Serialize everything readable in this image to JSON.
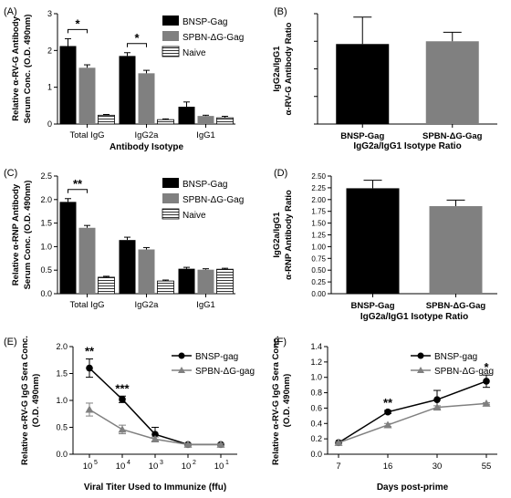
{
  "chart_data": [
    {
      "panel": "(A)",
      "type": "bar",
      "ylabel": [
        "Relative α-RV-G Antibody",
        "Serum Conc. (O.D. 490nm)"
      ],
      "xlabel": "Antibody Isotype",
      "categories": [
        "Total IgG",
        "IgG2a",
        "IgG1"
      ],
      "ylim": [
        0,
        3
      ],
      "yticks": [
        "0",
        "1",
        "2",
        "3"
      ],
      "series": [
        {
          "name": "BNSP-Gag",
          "values": [
            2.12,
            1.85,
            0.47
          ],
          "errors": [
            0.2,
            0.09,
            0.13
          ]
        },
        {
          "name": "SPBN-ΔG-Gag",
          "values": [
            1.53,
            1.38,
            0.22
          ],
          "errors": [
            0.08,
            0.08,
            0.02
          ]
        },
        {
          "name": "Naive",
          "values": [
            0.24,
            0.12,
            0.17
          ],
          "errors": [
            0.02,
            0.02,
            0.04
          ]
        }
      ],
      "annotations": [
        {
          "category": "Total IgG",
          "text": "*"
        },
        {
          "category": "IgG2a",
          "text": "*"
        }
      ],
      "legend": "top-right"
    },
    {
      "panel": "(B)",
      "type": "bar",
      "ylabel": [
        "IgG2a/IgG1",
        "α-RV-G Antibody Ratio"
      ],
      "xlabel": "IgG2a/IgG1 Isotype Ratio",
      "categories": [
        "BNSP-Gag",
        "SPBN-ΔG-Gag"
      ],
      "ylim": [
        0,
        8
      ],
      "values": [
        5.8,
        6.0
      ],
      "errors": [
        1.95,
        0.65
      ],
      "colors": [
        "#000000",
        "#808080"
      ]
    },
    {
      "panel": "(C)",
      "type": "bar",
      "ylabel": [
        "Relative α-RNP Antibody",
        "Serum Conc. (O.D. 490nm)"
      ],
      "categories": [
        "Total IgG",
        "IgG2a",
        "IgG1"
      ],
      "ylim": [
        0,
        2.5
      ],
      "yticks": [
        "0.0",
        "0.5",
        "1.0",
        "1.5",
        "2.0",
        "2.5"
      ],
      "series": [
        {
          "name": "BNSP-Gag",
          "values": [
            1.95,
            1.14,
            0.53
          ],
          "errors": [
            0.07,
            0.06,
            0.03
          ]
        },
        {
          "name": "SPBN-ΔG-Gag",
          "values": [
            1.4,
            0.94,
            0.51
          ],
          "errors": [
            0.05,
            0.04,
            0.02
          ]
        },
        {
          "name": "Naive",
          "values": [
            0.35,
            0.27,
            0.52
          ],
          "errors": [
            0.02,
            0.02,
            0.02
          ]
        }
      ],
      "annotations": [
        {
          "category": "Total IgG",
          "text": "**"
        }
      ],
      "legend": "top-right"
    },
    {
      "panel": "(D)",
      "type": "bar",
      "ylabel": [
        "IgG2a/IgG1",
        "α-RNP Antibody Ratio"
      ],
      "xlabel": "IgG2a/IgG1 Isotype Ratio",
      "categories": [
        "BNSP-Gag",
        "SPBN-ΔG-Gag"
      ],
      "ylim": [
        0,
        2.5
      ],
      "yticks": [
        "0.00",
        "0.25",
        "0.50",
        "0.75",
        "1.00",
        "1.25",
        "1.50",
        "1.75",
        "2.00",
        "2.25",
        "2.50"
      ],
      "values": [
        2.24,
        1.86
      ],
      "errors": [
        0.17,
        0.13
      ],
      "colors": [
        "#000000",
        "#808080"
      ]
    },
    {
      "panel": "(E)",
      "type": "line",
      "ylabel": [
        "Relative α-RV-G IgG Sera Conc.",
        "(O.D. 490nm)"
      ],
      "xlabel": "Viral Titer Used to Immunize (ffu)",
      "x_log10": [
        5,
        4,
        3,
        2,
        1
      ],
      "x_tick_base": "10",
      "ylim": [
        0,
        2.0
      ],
      "yticks": [
        "0.0",
        "0.5",
        "1.0",
        "1.5",
        "2.0"
      ],
      "series": [
        {
          "name": "BNSP-gag",
          "values": [
            1.6,
            1.02,
            0.37,
            0.18,
            0.18
          ],
          "errors": [
            0.17,
            0.06,
            0.13,
            0.02,
            0.02
          ],
          "marker": "circle",
          "color": "#000000"
        },
        {
          "name": "SPBN-ΔG-gag",
          "values": [
            0.83,
            0.46,
            0.28,
            0.18,
            0.18
          ],
          "errors": [
            0.12,
            0.08,
            0.04,
            0.02,
            0.02
          ],
          "marker": "triangle",
          "color": "#808080"
        }
      ],
      "annotations": [
        {
          "index": 0,
          "text": "**"
        },
        {
          "index": 1,
          "text": "***"
        }
      ],
      "legend": "top-right"
    },
    {
      "panel": "(F)",
      "type": "line",
      "ylabel": [
        "Relative α-RV-G IgG Sera Conc.",
        "(O.D. 490nm)"
      ],
      "xlabel": "Days post-prime",
      "x": [
        "7",
        "16",
        "30",
        "55"
      ],
      "ylim": [
        0,
        1.4
      ],
      "yticks": [
        "0.0",
        "0.2",
        "0.4",
        "0.6",
        "0.8",
        "1.0",
        "1.2",
        "1.4"
      ],
      "series": [
        {
          "name": "BNSP-gag",
          "values": [
            0.15,
            0.55,
            0.71,
            0.95
          ],
          "errors": [
            0.01,
            0.02,
            0.12,
            0.08
          ],
          "marker": "circle",
          "color": "#000000"
        },
        {
          "name": "SPBN-ΔG-gag",
          "values": [
            0.15,
            0.38,
            0.61,
            0.66
          ],
          "errors": [
            0.01,
            0.02,
            0.02,
            0.01
          ],
          "marker": "triangle",
          "color": "#808080"
        }
      ],
      "annotations": [
        {
          "index": 1,
          "text": "**"
        },
        {
          "index": 3,
          "text": "*"
        }
      ],
      "legend": "top-right"
    }
  ]
}
